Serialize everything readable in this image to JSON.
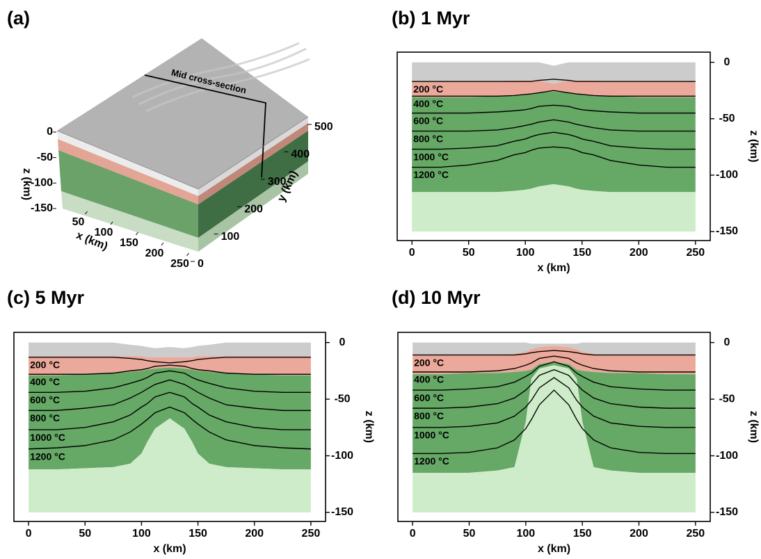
{
  "chart_data": [
    {
      "type": "block-diagram",
      "title": "(a)",
      "annotation": "Mid cross-section",
      "xlabel": "x (km)",
      "ylabel": "y (km)",
      "zlabel": "z (km)",
      "xticks": [
        50,
        100,
        150,
        200,
        250
      ],
      "yticks": [
        0,
        100,
        200,
        300,
        400,
        500
      ],
      "zticks": [
        0,
        -50,
        -100,
        -150
      ]
    },
    {
      "type": "cross-section",
      "title": "(b) 1 Myr",
      "xlabel": "x (km)",
      "ylabel": "z (km)",
      "xlim": [
        -13,
        263
      ],
      "ylim": [
        -158,
        9
      ],
      "xticks": [
        0,
        50,
        100,
        150,
        200,
        250
      ],
      "yticks": [
        0,
        -50,
        -100,
        -150
      ],
      "x": [
        0,
        25,
        50,
        75,
        90,
        100,
        105,
        112,
        125,
        138,
        145,
        150,
        160,
        175,
        200,
        225,
        250
      ],
      "layer_colors": [
        "#cccccc",
        "#eaa99a",
        "#66a866",
        "#ceecc9"
      ],
      "boundaries": [
        [
          0,
          0,
          0,
          0,
          0,
          0,
          0,
          0,
          -3,
          0,
          0,
          0,
          0,
          0,
          0,
          0,
          0
        ],
        [
          -17,
          -17,
          -17,
          -17,
          -16,
          -16,
          -16,
          -16,
          -19,
          -16,
          -16,
          -16,
          -16,
          -17,
          -17,
          -17,
          -17
        ],
        [
          -31,
          -31,
          -31,
          -30,
          -30,
          -29,
          -28,
          -27,
          -26,
          -27,
          -28,
          -29,
          -30,
          -30,
          -31,
          -31,
          -31
        ],
        [
          -115,
          -115,
          -115,
          -115,
          -114,
          -113,
          -112,
          -110,
          -108,
          -110,
          -112,
          -113,
          -114,
          -115,
          -115,
          -115,
          -115
        ],
        [
          -150,
          -150,
          -150,
          -150,
          -150,
          -150,
          -150,
          -150,
          -150,
          -150,
          -150,
          -150,
          -150,
          -150,
          -150,
          -150,
          -150
        ]
      ],
      "series": [
        {
          "name": "200 °C",
          "color": "#000000",
          "values": [
            -17,
            -17,
            -17,
            -17,
            -17,
            -17,
            -17,
            -16,
            -15,
            -16,
            -17,
            -17,
            -17,
            -17,
            -17,
            -17,
            -17
          ]
        },
        {
          "name": "400 °C",
          "color": "#000000",
          "values": [
            -30,
            -30,
            -30,
            -30,
            -29.5,
            -28.5,
            -28,
            -27,
            -25,
            -27,
            -28,
            -28.5,
            -29.5,
            -30,
            -30,
            -30,
            -30
          ]
        },
        {
          "name": "600 °C",
          "color": "#000000",
          "values": [
            -45,
            -45,
            -45,
            -44,
            -43,
            -42,
            -41,
            -39,
            -38,
            -39,
            -41,
            -42,
            -43,
            -44,
            -45,
            -45,
            -45
          ]
        },
        {
          "name": "800 °C",
          "color": "#000000",
          "values": [
            -61,
            -61,
            -61,
            -60,
            -58,
            -56,
            -55,
            -53,
            -51,
            -53,
            -55,
            -56,
            -58,
            -60,
            -61,
            -61,
            -61
          ]
        },
        {
          "name": "1000 °C",
          "color": "#000000",
          "values": [
            -77,
            -77,
            -76,
            -74,
            -70,
            -68,
            -66,
            -64,
            -62,
            -64,
            -66,
            -68,
            -70,
            -74,
            -76,
            -77,
            -77
          ]
        },
        {
          "name": "1200 °C",
          "color": "#000000",
          "values": [
            -93,
            -93,
            -91,
            -87,
            -82,
            -80,
            -78,
            -76,
            -75,
            -76,
            -78,
            -80,
            -82,
            -87,
            -91,
            -93,
            -93
          ]
        }
      ]
    },
    {
      "type": "cross-section",
      "title": "(c) 5 Myr",
      "xlabel": "x (km)",
      "ylabel": "z (km)",
      "xlim": [
        -13,
        263
      ],
      "ylim": [
        -158,
        9
      ],
      "xticks": [
        0,
        50,
        100,
        150,
        200,
        250
      ],
      "yticks": [
        0,
        -50,
        -100,
        -150
      ],
      "x": [
        0,
        25,
        50,
        75,
        90,
        100,
        105,
        112,
        125,
        138,
        145,
        150,
        160,
        175,
        200,
        225,
        250
      ],
      "layer_colors": [
        "#cccccc",
        "#eaa99a",
        "#66a866",
        "#ceecc9"
      ],
      "boundaries": [
        [
          0,
          0,
          0,
          0,
          -2,
          -3,
          -4,
          -5,
          -4,
          -5,
          -4,
          -3,
          -2,
          0,
          0,
          0,
          0
        ],
        [
          -12,
          -12,
          -12,
          -12,
          -12,
          -12,
          -13,
          -13,
          -13,
          -13,
          -13,
          -12,
          -12,
          -12,
          -12,
          -12,
          -12
        ],
        [
          -29,
          -29,
          -28,
          -27,
          -26,
          -25,
          -24,
          -23,
          -22,
          -23,
          -24,
          -25,
          -26,
          -27,
          -28,
          -29,
          -29
        ],
        [
          -112,
          -112,
          -111,
          -110,
          -107,
          -98,
          -88,
          -76,
          -67,
          -76,
          -88,
          -98,
          -107,
          -110,
          -111,
          -112,
          -112
        ],
        [
          -150,
          -150,
          -150,
          -150,
          -150,
          -150,
          -150,
          -150,
          -150,
          -150,
          -150,
          -150,
          -150,
          -150,
          -150,
          -150,
          -150
        ]
      ],
      "series": [
        {
          "name": "200 °C",
          "color": "#000000",
          "values": [
            -13,
            -13,
            -13,
            -13,
            -14,
            -15,
            -16,
            -17,
            -18,
            -17,
            -16,
            -15,
            -14,
            -13,
            -13,
            -13,
            -13
          ]
        },
        {
          "name": "400 °C",
          "color": "#000000",
          "values": [
            -28,
            -28,
            -28,
            -27,
            -25,
            -24,
            -23,
            -21,
            -20,
            -21,
            -23,
            -24,
            -25,
            -27,
            -28,
            -28,
            -28
          ]
        },
        {
          "name": "600 °C",
          "color": "#000000",
          "values": [
            -44,
            -44,
            -43,
            -40,
            -36,
            -33,
            -31,
            -27,
            -25,
            -27,
            -31,
            -33,
            -36,
            -40,
            -43,
            -44,
            -44
          ]
        },
        {
          "name": "800 °C",
          "color": "#000000",
          "values": [
            -60,
            -60,
            -58,
            -55,
            -49,
            -44,
            -41,
            -37,
            -33,
            -37,
            -41,
            -44,
            -49,
            -55,
            -58,
            -60,
            -60
          ]
        },
        {
          "name": "1000 °C",
          "color": "#000000",
          "values": [
            -77,
            -77,
            -75,
            -70,
            -64,
            -57,
            -54,
            -48,
            -44,
            -48,
            -54,
            -57,
            -64,
            -70,
            -75,
            -77,
            -77
          ]
        },
        {
          "name": "1200 °C",
          "color": "#000000",
          "values": [
            -94,
            -93,
            -91,
            -86,
            -79,
            -72,
            -68,
            -62,
            -57,
            -62,
            -68,
            -72,
            -79,
            -86,
            -91,
            -93,
            -94
          ]
        }
      ]
    },
    {
      "type": "cross-section",
      "title": "(d) 10 Myr",
      "xlabel": "x (km)",
      "ylabel": "z (km)",
      "xlim": [
        -13,
        263
      ],
      "ylim": [
        -158,
        9
      ],
      "xticks": [
        0,
        50,
        100,
        150,
        200,
        250
      ],
      "yticks": [
        0,
        -50,
        -100,
        -150
      ],
      "x": [
        0,
        25,
        50,
        75,
        90,
        100,
        105,
        112,
        125,
        138,
        145,
        150,
        160,
        175,
        200,
        225,
        250
      ],
      "layer_colors": [
        "#cccccc",
        "#eaa99a",
        "#66a866",
        "#ceecc9"
      ],
      "boundaries": [
        [
          0,
          0,
          0,
          0,
          0,
          0,
          -1,
          -1,
          -1,
          -1,
          -1,
          0,
          0,
          0,
          0,
          0,
          0
        ],
        [
          -11,
          -11,
          -11,
          -11,
          -10,
          -8,
          -6,
          -4,
          -3,
          -4,
          -6,
          -8,
          -10,
          -11,
          -11,
          -11,
          -11
        ],
        [
          -28,
          -28,
          -27,
          -27,
          -26,
          -25,
          -24,
          -19,
          -17,
          -19,
          -24,
          -25,
          -26,
          -27,
          -27,
          -28,
          -28
        ],
        [
          -115,
          -115,
          -115,
          -113,
          -110,
          -70,
          -32,
          -23,
          -20,
          -23,
          -32,
          -70,
          -110,
          -113,
          -115,
          -115,
          -115
        ],
        [
          -150,
          -150,
          -150,
          -150,
          -150,
          -150,
          -150,
          -150,
          -150,
          -150,
          -150,
          -150,
          -150,
          -150,
          -150,
          -150,
          -150
        ]
      ],
      "series": [
        {
          "name": "200 °C",
          "color": "#000000",
          "values": [
            -11,
            -11,
            -11,
            -11,
            -11,
            -10,
            -9,
            -8,
            -7,
            -8,
            -9,
            -10,
            -11,
            -11,
            -11,
            -11,
            -11
          ]
        },
        {
          "name": "400 °C",
          "color": "#000000",
          "values": [
            -26,
            -26,
            -26,
            -25,
            -23,
            -20,
            -18,
            -14,
            -12,
            -14,
            -18,
            -20,
            -23,
            -25,
            -26,
            -26,
            -26
          ]
        },
        {
          "name": "600 °C",
          "color": "#000000",
          "values": [
            -42,
            -42,
            -41,
            -39,
            -35,
            -30,
            -27,
            -21,
            -17,
            -21,
            -27,
            -30,
            -35,
            -39,
            -41,
            -42,
            -42
          ]
        },
        {
          "name": "800 °C",
          "color": "#000000",
          "values": [
            -58,
            -58,
            -57,
            -54,
            -49,
            -42,
            -37,
            -29,
            -24,
            -29,
            -37,
            -42,
            -49,
            -54,
            -57,
            -58,
            -58
          ]
        },
        {
          "name": "1000 °C",
          "color": "#000000",
          "values": [
            -75,
            -75,
            -74,
            -71,
            -65,
            -57,
            -51,
            -40,
            -31,
            -40,
            -51,
            -57,
            -65,
            -71,
            -74,
            -75,
            -75
          ]
        },
        {
          "name": "1200 °C",
          "color": "#000000",
          "values": [
            -98,
            -98,
            -97,
            -93,
            -86,
            -76,
            -68,
            -55,
            -42,
            -55,
            -68,
            -76,
            -86,
            -93,
            -97,
            -98,
            -98
          ]
        }
      ]
    }
  ]
}
